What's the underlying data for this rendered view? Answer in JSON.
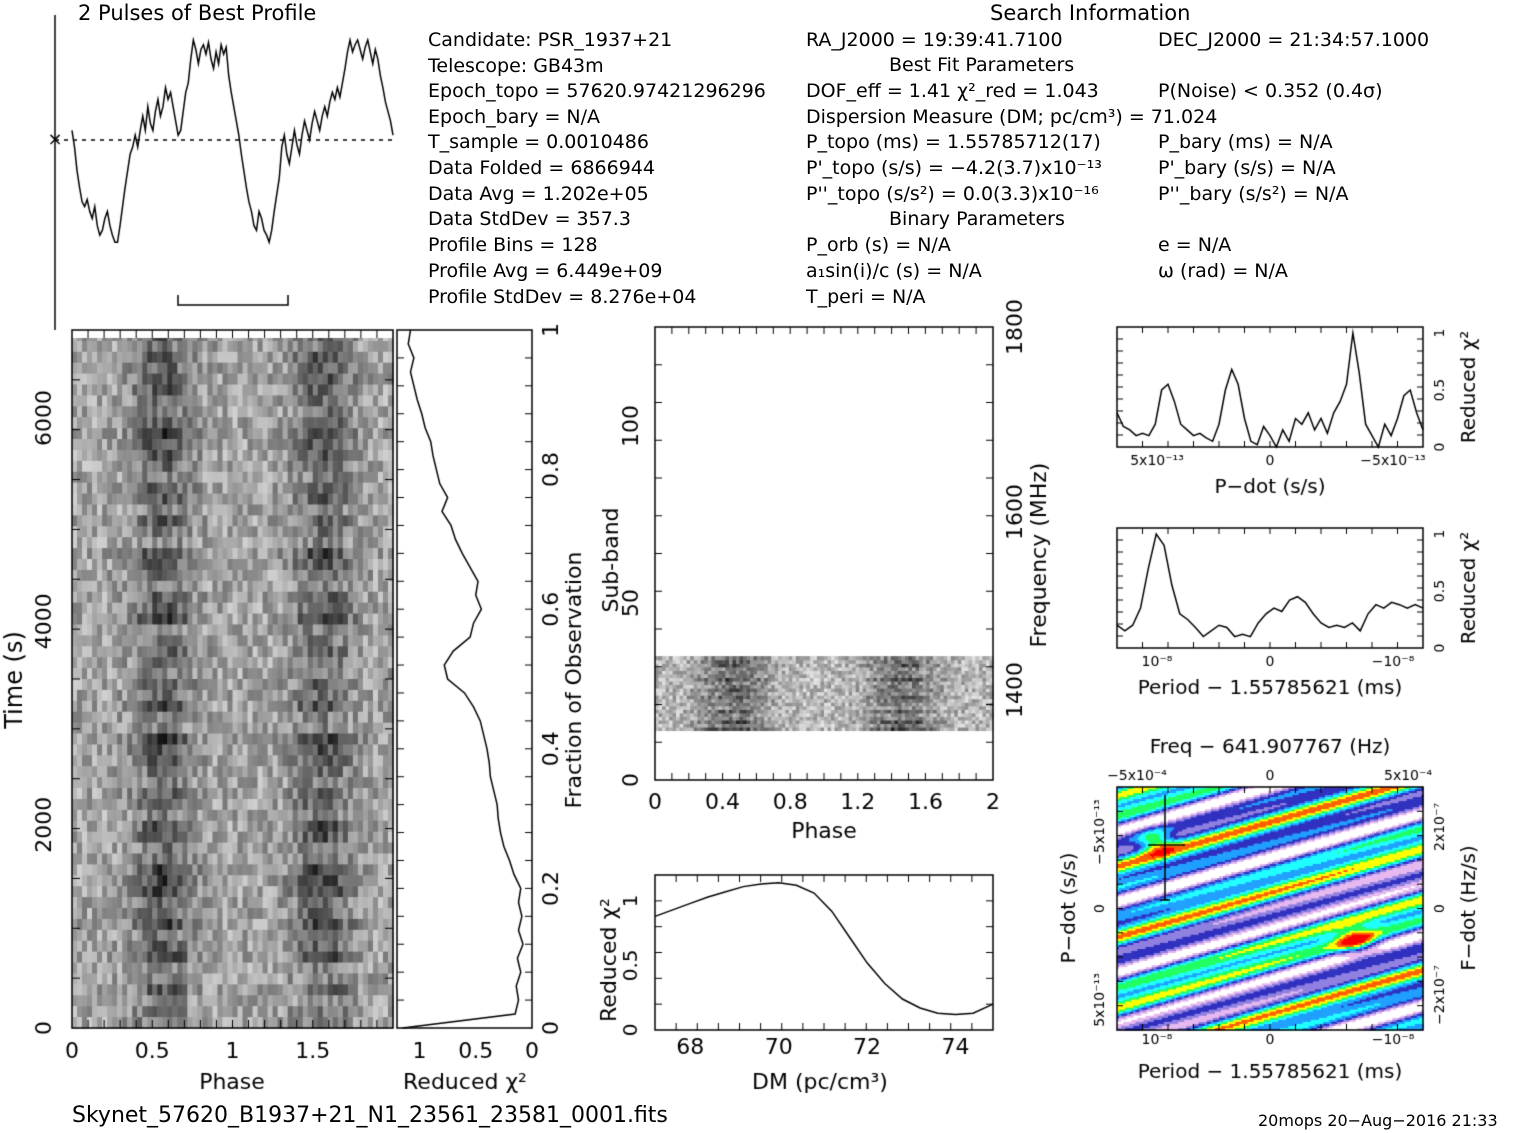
{
  "header": {
    "profile_title": "2 Pulses of Best Profile",
    "search_title": "Search Information",
    "best_fit_title": "Best Fit Parameters",
    "binary_title": "Binary Parameters"
  },
  "info_left": [
    "Candidate:  PSR_1937+21",
    "Telescope:  GB43m",
    "Epoch_topo = 57620.97421296296",
    "Epoch_bary = N/A",
    "T_sample        =  0.0010486",
    "Data Folded    =  6866944",
    "Data Avg        =  1.202e+05",
    "Data StdDev    =  357.3",
    "Profile Bins    =  128",
    "Profile Avg     =  6.449e+09",
    "Profile StdDev =  8.276e+04"
  ],
  "info_mid": [
    "RA_J2000 = 19:39:41.7100",
    "DOF_eff = 1.41   χ²_red = 1.043",
    "Dispersion Measure (DM; pc/cm³) = 71.024",
    "P_topo (ms) =  1.55785712(17)",
    "P'_topo (s/s) = −4.2(3.7)x10⁻¹³",
    "P''_topo (s/s²) = 0.0(3.3)x10⁻¹⁶",
    "P_orb (s) = N/A",
    "a₁sin(i)/c (s) = N/A",
    "T_peri = N/A"
  ],
  "info_right": [
    "DEC_J2000 = 21:34:57.1000",
    "P(Noise) < 0.352   (0.4σ)",
    "P_bary (ms) = N/A",
    "P'_bary (s/s) = N/A",
    "P''_bary (s/s²) = N/A",
    "e = N/A",
    "ω (rad) = N/A"
  ],
  "footer": {
    "filename": "Skynet_57620_B1937+21_N1_23561_23581_0001.fits",
    "stamp": "20mops 20−Aug−2016 21:33"
  },
  "colors": {
    "ink": "#000000",
    "grid_dark": "#111111",
    "colormap": [
      "#ffffff",
      "#e6b8f0",
      "#9080e0",
      "#3030c0",
      "#20a0ff",
      "#20ffff",
      "#20ff60",
      "#ffff00",
      "#ff6000",
      "#ff0000"
    ]
  },
  "chart_data": [
    {
      "type": "line",
      "title": "2 Pulses of Best Profile",
      "x_range": [
        0,
        2
      ],
      "profile": [
        0.62,
        0.55,
        0.45,
        0.38,
        0.32,
        0.3,
        0.33,
        0.28,
        0.25,
        0.3,
        0.22,
        0.18,
        0.2,
        0.25,
        0.28,
        0.22,
        0.18,
        0.15,
        0.15,
        0.22,
        0.3,
        0.38,
        0.45,
        0.52,
        0.55,
        0.6,
        0.55,
        0.62,
        0.68,
        0.62,
        0.72,
        0.65,
        0.62,
        0.7,
        0.75,
        0.68,
        0.72,
        0.8,
        0.75,
        0.78,
        0.72,
        0.66,
        0.6,
        0.62,
        0.7,
        0.78,
        0.82,
        0.92,
        1.0,
        0.96,
        0.9,
        0.96,
        0.98,
        0.94,
        0.99,
        0.92,
        0.88,
        0.95,
        0.9,
        0.98,
        0.94,
        0.97,
        0.85,
        0.78,
        0.72,
        0.66,
        0.6,
        0.52,
        0.45,
        0.38,
        0.32,
        0.28,
        0.22,
        0.2,
        0.28,
        0.25,
        0.2,
        0.18,
        0.15,
        0.2,
        0.28,
        0.35,
        0.42,
        0.55,
        0.6,
        0.52,
        0.48,
        0.55,
        0.62,
        0.56,
        0.52,
        0.6,
        0.66,
        0.62,
        0.58,
        0.65,
        0.7,
        0.66,
        0.62,
        0.68,
        0.72,
        0.68,
        0.74,
        0.78,
        0.75,
        0.8,
        0.76,
        0.82,
        0.88,
        0.95,
        1.0,
        0.95,
        0.98,
        1.0,
        0.96,
        0.92,
        0.97,
        1.0,
        0.95,
        0.9,
        0.96,
        0.92,
        0.85,
        0.8,
        0.74,
        0.7,
        0.66,
        0.6
      ],
      "dotted_level": 0.58
    },
    {
      "type": "heatmap",
      "xlabel": "Phase",
      "ylabel": "Time (s)",
      "xlim": [
        0,
        2
      ],
      "ylim": [
        0,
        6866
      ],
      "xticks": [
        "0",
        "0.5",
        "1",
        "1.5"
      ],
      "yticks": [
        "0",
        "2000",
        "4000",
        "6000"
      ]
    },
    {
      "type": "line",
      "xlabel": "Reduced χ²",
      "ylabel": "Fraction of Observation",
      "x_ticks": [
        "1",
        "0.5",
        "0"
      ],
      "y_ticks": [
        "0",
        "0.2",
        "0.4",
        "0.6",
        "0.8",
        "1"
      ],
      "fraction": [
        0.0,
        0.02,
        0.04,
        0.06,
        0.08,
        0.1,
        0.12,
        0.14,
        0.16,
        0.18,
        0.2,
        0.22,
        0.24,
        0.26,
        0.28,
        0.3,
        0.32,
        0.34,
        0.36,
        0.38,
        0.4,
        0.42,
        0.44,
        0.46,
        0.48,
        0.5,
        0.52,
        0.54,
        0.56,
        0.58,
        0.6,
        0.62,
        0.64,
        0.66,
        0.68,
        0.7,
        0.72,
        0.74,
        0.76,
        0.78,
        0.8,
        0.82,
        0.84,
        0.86,
        0.88,
        0.9,
        0.92,
        0.94,
        0.96,
        0.98,
        1.0
      ],
      "reduced_chi2": [
        1.15,
        0.15,
        0.12,
        0.14,
        0.1,
        0.13,
        0.08,
        0.12,
        0.09,
        0.12,
        0.1,
        0.16,
        0.2,
        0.25,
        0.28,
        0.3,
        0.31,
        0.34,
        0.37,
        0.38,
        0.4,
        0.43,
        0.46,
        0.52,
        0.6,
        0.75,
        0.78,
        0.7,
        0.55,
        0.52,
        0.45,
        0.5,
        0.48,
        0.55,
        0.62,
        0.68,
        0.72,
        0.8,
        0.75,
        0.82,
        0.85,
        0.88,
        0.9,
        0.95,
        0.98,
        1.02,
        1.05,
        1.08,
        1.05,
        1.1,
        1.08
      ]
    },
    {
      "type": "heatmap",
      "xlabel": "Phase",
      "ylabel": "Sub-band",
      "y2label": "Frequency (MHz)",
      "xlim": [
        0,
        2
      ],
      "ylim": [
        0,
        128
      ],
      "xticks": [
        "0",
        "0.4",
        "0.8",
        "1.2",
        "1.6",
        "2"
      ],
      "yticks": [
        "0",
        "50",
        "100"
      ],
      "y2ticks": [
        "1400",
        "1600",
        "1800"
      ],
      "band_rows": [
        14,
        35
      ]
    },
    {
      "type": "line",
      "xlabel": "DM (pc/cm³)",
      "ylabel": "Reduced χ²",
      "xlim": [
        67.2,
        74.85
      ],
      "ylim": [
        0,
        1.2
      ],
      "xticks": [
        "68",
        "70",
        "72",
        "74"
      ],
      "yticks": [
        "0",
        "0.5",
        "1"
      ],
      "x": [
        67.2,
        67.6,
        68.0,
        68.4,
        68.8,
        69.2,
        69.6,
        70.0,
        70.4,
        70.8,
        71.2,
        71.6,
        72.0,
        72.4,
        72.8,
        73.2,
        73.6,
        74.0,
        74.4,
        74.85
      ],
      "y": [
        0.88,
        0.93,
        0.98,
        1.03,
        1.07,
        1.11,
        1.13,
        1.14,
        1.12,
        1.06,
        0.92,
        0.72,
        0.52,
        0.36,
        0.24,
        0.17,
        0.13,
        0.12,
        0.13,
        0.2
      ]
    },
    {
      "type": "line",
      "xlabel": "P−dot (s/s)",
      "ylabel": "Reduced χ²",
      "xticks": [
        "5x10⁻¹³",
        "0",
        "−5x10⁻¹³"
      ],
      "yticks": [
        "0",
        "0.5",
        "1"
      ],
      "values": [
        0.3,
        0.18,
        0.15,
        0.1,
        0.12,
        0.1,
        0.2,
        0.5,
        0.55,
        0.4,
        0.2,
        0.15,
        0.1,
        0.12,
        0.08,
        0.05,
        0.2,
        0.5,
        0.68,
        0.55,
        0.25,
        0.05,
        0.02,
        0.18,
        0.1,
        0.0,
        0.15,
        0.05,
        0.25,
        0.2,
        0.3,
        0.15,
        0.25,
        0.12,
        0.3,
        0.4,
        0.55,
        1.0,
        0.65,
        0.2,
        0.1,
        0.0,
        0.2,
        0.1,
        0.25,
        0.45,
        0.5,
        0.3,
        0.15
      ]
    },
    {
      "type": "line",
      "xlabel": "Period − 1.55785621 (ms)",
      "ylabel": "Reduced χ²",
      "xticks": [
        "10⁻⁸",
        "0",
        "−10⁻⁸"
      ],
      "yticks": [
        "0",
        "0.5",
        "1"
      ],
      "values": [
        0.2,
        0.15,
        0.2,
        0.35,
        0.7,
        1.0,
        0.9,
        0.55,
        0.3,
        0.25,
        0.18,
        0.1,
        0.15,
        0.2,
        0.18,
        0.1,
        0.12,
        0.1,
        0.22,
        0.3,
        0.35,
        0.32,
        0.42,
        0.45,
        0.4,
        0.3,
        0.22,
        0.18,
        0.2,
        0.18,
        0.22,
        0.15,
        0.3,
        0.38,
        0.35,
        0.4,
        0.38,
        0.35,
        0.38,
        0.35
      ]
    },
    {
      "type": "heatmap",
      "title": "Freq − 641.907767 (Hz)",
      "xlabel": "Period − 1.55785621 (ms)",
      "ylabel": "P−dot (s/s)",
      "y2label": "F−dot (Hz/s)",
      "xticks_bottom": [
        "10⁻⁸",
        "0",
        "−10⁻⁸"
      ],
      "xticks_top": [
        "−5x10⁻⁴",
        "0",
        "5x10⁻⁴"
      ],
      "yticks": [
        "−5x10⁻¹³",
        "0",
        "5x10⁻¹³"
      ],
      "y2ticks": [
        "2x10⁻⁷",
        "0",
        "−2x10⁻⁷"
      ]
    }
  ]
}
